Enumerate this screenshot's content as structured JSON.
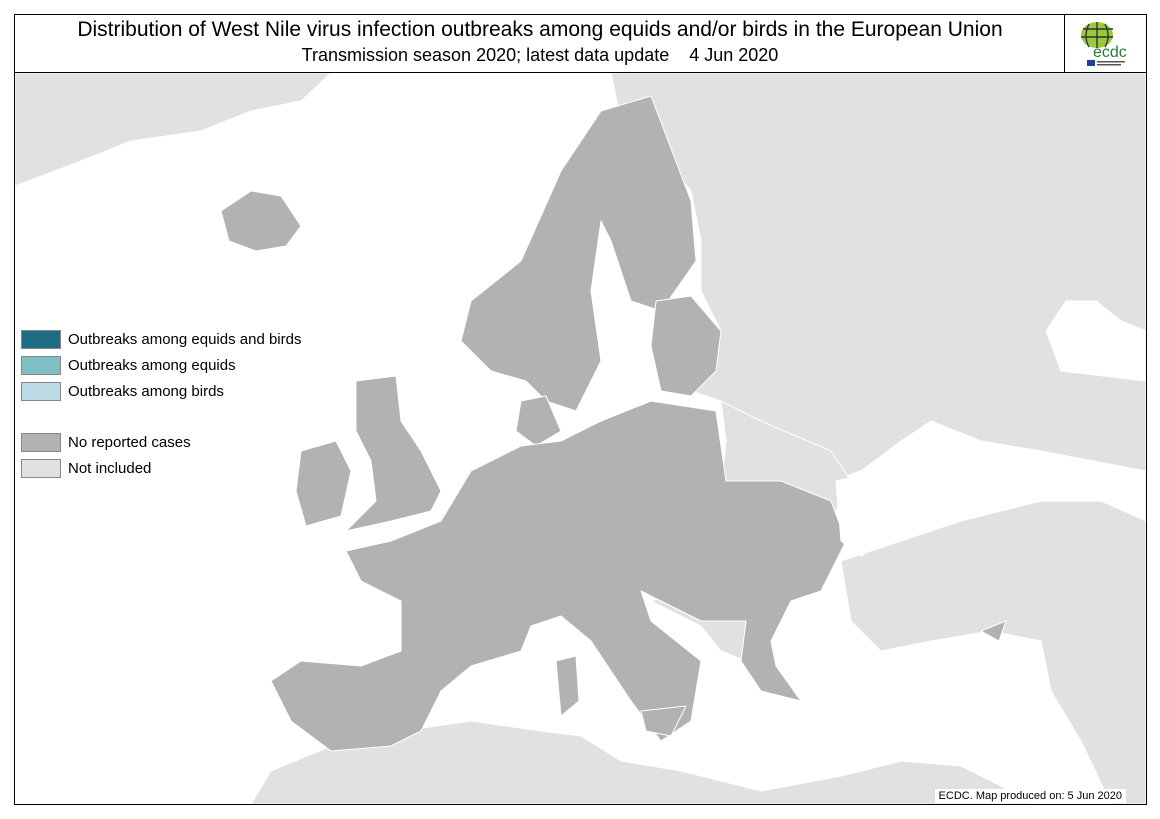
{
  "header": {
    "title": "Distribution of West Nile virus infection outbreaks among equids and/or birds in the European Union",
    "subtitle": "Transmission season 2020; latest data update    4 Jun 2020"
  },
  "logo": {
    "text": "ecdc",
    "subtext": "EUROPEAN CENTRE FOR DISEASE PREVENTION AND CONTROL"
  },
  "legend": {
    "items": [
      {
        "label": "Outbreaks among equids and birds",
        "color": "#1f6b83"
      },
      {
        "label": "Outbreaks among equids",
        "color": "#7fbfc4"
      },
      {
        "label": "Outbreaks among birds",
        "color": "#bcd9e6"
      },
      {
        "label": "No reported cases",
        "color": "#b2b2b2"
      },
      {
        "label": "Not included",
        "color": "#e1e1e1"
      }
    ]
  },
  "footer": {
    "credit": "ECDC. Map produced on: 5 Jun 2020"
  }
}
